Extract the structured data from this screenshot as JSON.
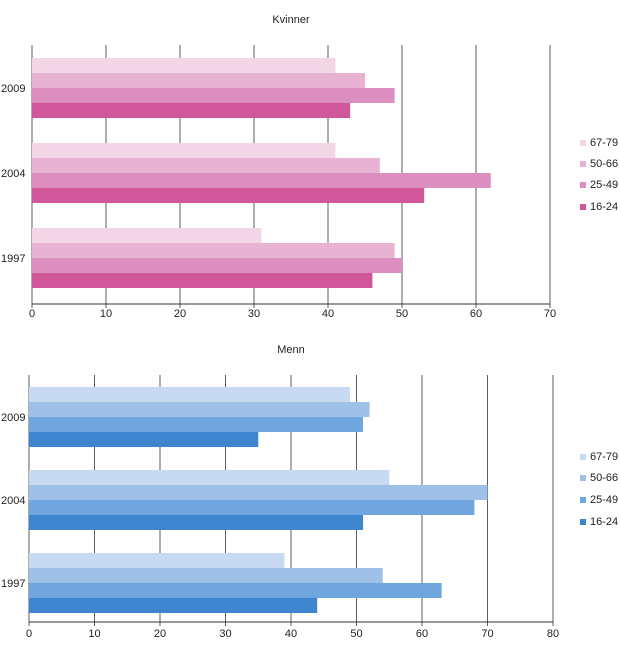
{
  "chart_data": [
    {
      "type": "bar",
      "orientation": "horizontal",
      "title": "Kvinner",
      "categories": [
        "2009",
        "2004",
        "1997"
      ],
      "xlim": [
        0,
        70
      ],
      "xticks": [
        0,
        10,
        20,
        30,
        40,
        50,
        60,
        70
      ],
      "grid": "vertical",
      "legend_position": "right",
      "series": [
        {
          "name": "67-79",
          "color": "#f2d6e6",
          "values": [
            41,
            41,
            31
          ]
        },
        {
          "name": "50-66",
          "color": "#e8b3d2",
          "values": [
            45,
            47,
            49
          ]
        },
        {
          "name": "25-49",
          "color": "#dc8fbe",
          "values": [
            49,
            62,
            50
          ]
        },
        {
          "name": "16-24",
          "color": "#d0579a",
          "values": [
            43,
            53,
            46
          ]
        }
      ]
    },
    {
      "type": "bar",
      "orientation": "horizontal",
      "title": "Menn",
      "categories": [
        "2009",
        "2004",
        "1997"
      ],
      "xlim": [
        0,
        80
      ],
      "xticks": [
        0,
        10,
        20,
        30,
        40,
        50,
        60,
        70,
        80
      ],
      "grid": "vertical",
      "legend_position": "right",
      "series": [
        {
          "name": "67-79",
          "color": "#c8daf1",
          "values": [
            49,
            55,
            39
          ]
        },
        {
          "name": "50-66",
          "color": "#9fc1e8",
          "values": [
            52,
            70,
            54
          ]
        },
        {
          "name": "25-49",
          "color": "#6fa6de",
          "values": [
            51,
            68,
            63
          ]
        },
        {
          "name": "16-24",
          "color": "#3d86cf",
          "values": [
            35,
            51,
            44
          ]
        }
      ]
    }
  ]
}
